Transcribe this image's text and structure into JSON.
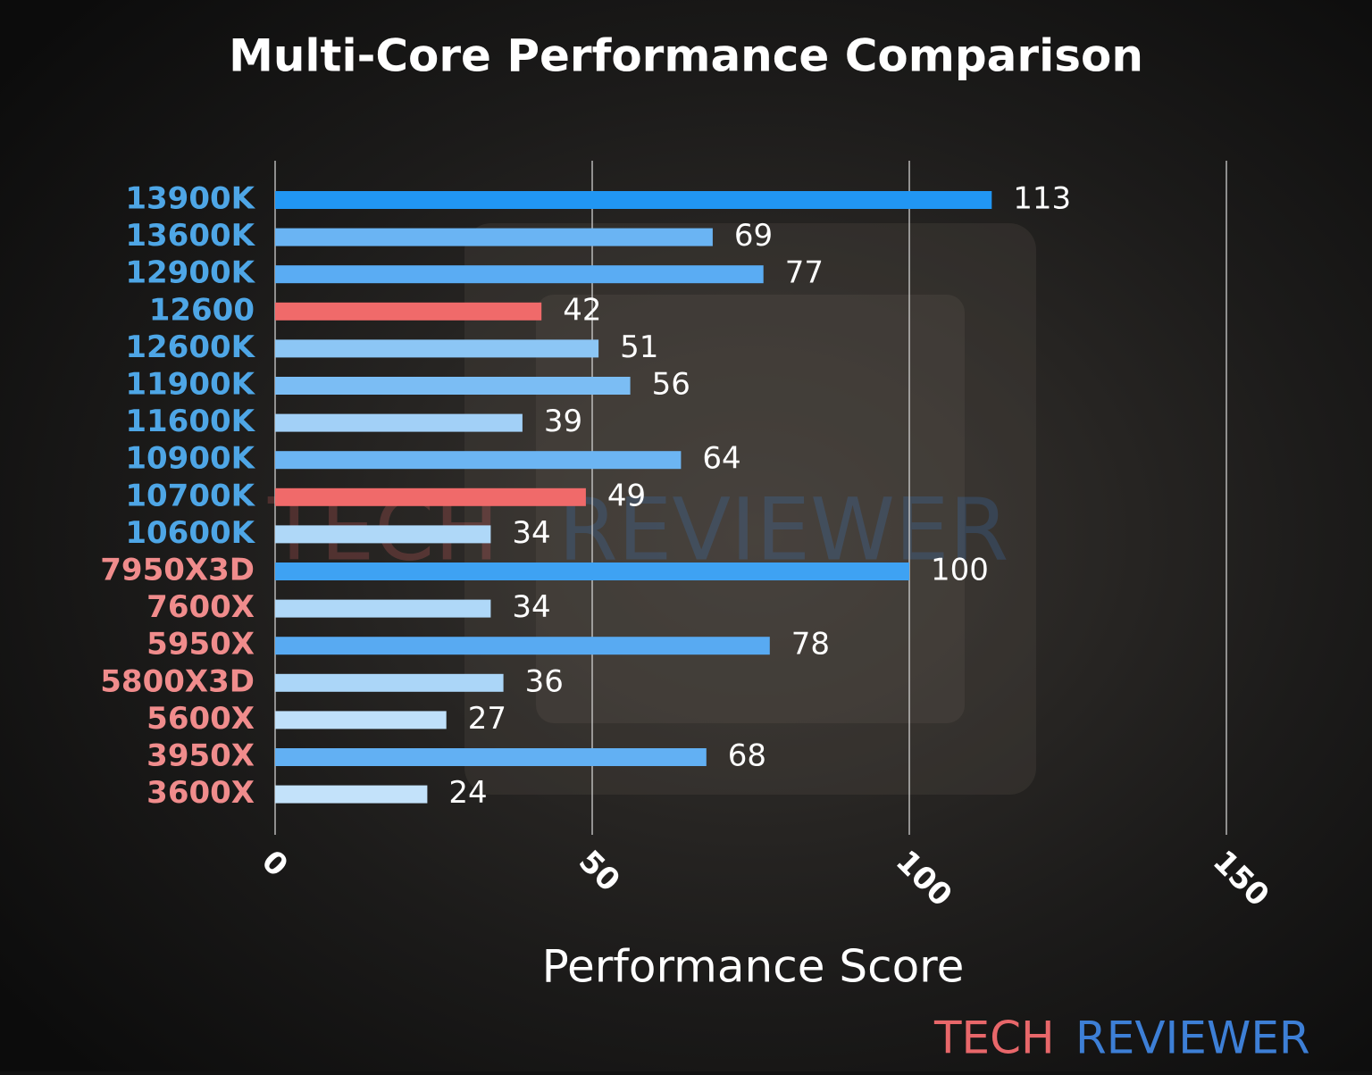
{
  "chart_data": {
    "type": "barh",
    "title": "Multi-Core Performance Comparison",
    "x_label": "Performance Score",
    "categories": [
      "13900K",
      "13600K",
      "12900K",
      "12600",
      "12600K",
      "11900K",
      "11600K",
      "10900K",
      "10700K",
      "10600K",
      "7950X3D",
      "7600X",
      "5950X",
      "5800X3D",
      "5600X",
      "3950X",
      "3600X"
    ],
    "category_colors": [
      "#4ea6e6",
      "#4ea6e6",
      "#4ea6e6",
      "#4ea6e6",
      "#4ea6e6",
      "#4ea6e6",
      "#4ea6e6",
      "#4ea6e6",
      "#4ea6e6",
      "#4ea6e6",
      "#f08c8c",
      "#f08c8c",
      "#f08c8c",
      "#f08c8c",
      "#f08c8c",
      "#f08c8c",
      "#f08c8c"
    ],
    "values": [
      113,
      69,
      77,
      42,
      51,
      56,
      39,
      64,
      49,
      34,
      100,
      34,
      78,
      36,
      27,
      68,
      24
    ],
    "colors": [
      "#2196f3",
      "#6ab4f3",
      "#5aacf3",
      "#f06a6a",
      "#8cc6f5",
      "#7bbdf4",
      "#a2d0f7",
      "#6cb5f3",
      "#f06a6a",
      "#afd8f8",
      "#3ea2f3",
      "#afd8f8",
      "#58aaf2",
      "#abd6f8",
      "#bfe0fa",
      "#62b0f3",
      "#c3e2fa"
    ],
    "xlim": [
      0,
      150
    ],
    "xticks": [
      0,
      50,
      100,
      150
    ],
    "grid": true,
    "watermark": [
      "TECH",
      "REVIEWER"
    ]
  }
}
